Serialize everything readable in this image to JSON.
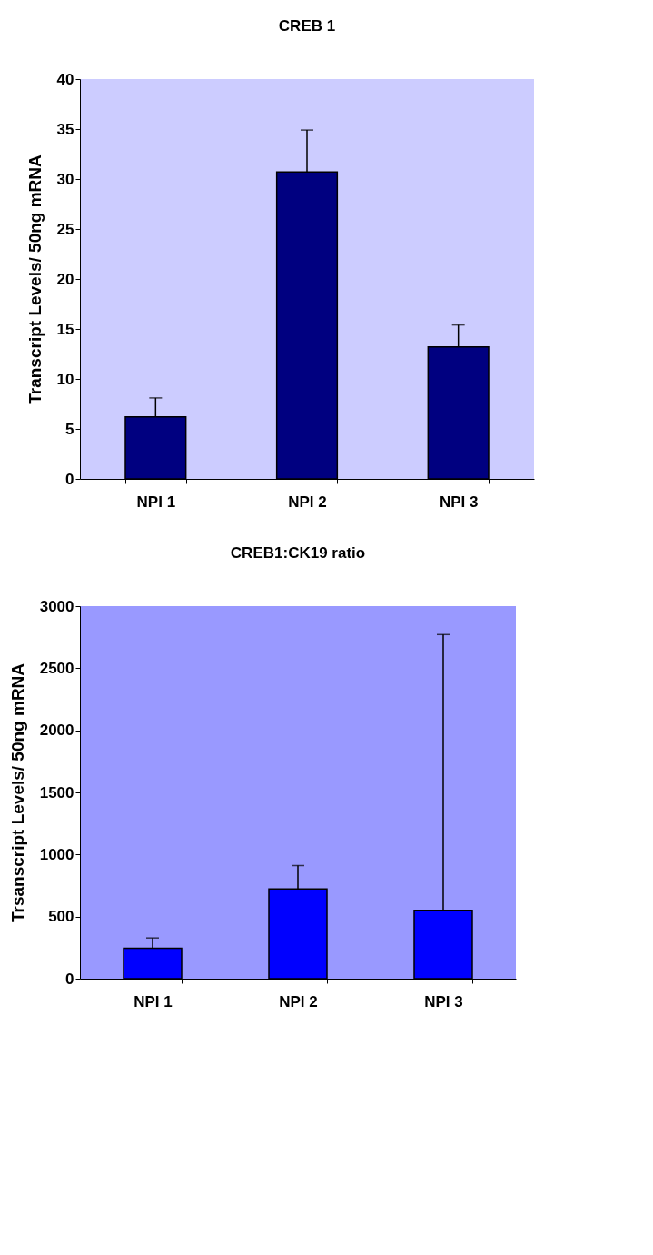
{
  "chart_data": [
    {
      "type": "bar",
      "title": "CREB 1",
      "ylabel": "Transcript Levels/ 50ng mRNA",
      "categories": [
        "NPI 1",
        "NPI 2",
        "NPI 3"
      ],
      "values": [
        6.2,
        30.7,
        13.2
      ],
      "errors": [
        [
          6.2,
          8.1
        ],
        [
          30.7,
          34.9
        ],
        [
          13.2,
          15.4
        ]
      ],
      "color": "#000080",
      "ylim": [
        0,
        40
      ],
      "yticks": [
        0,
        5,
        10,
        15,
        20,
        25,
        30,
        35,
        40
      ],
      "grid": false
    },
    {
      "type": "bar",
      "title": "CREB1:CK19 ratio",
      "ylabel": "Trsanscript Levels/ 50ng mRNA",
      "categories": [
        "NPI 1",
        "NPI 2",
        "NPI 3"
      ],
      "values": [
        245,
        723,
        551
      ],
      "errors": [
        [
          245,
          328
        ],
        [
          723,
          911
        ],
        [
          551,
          2771
        ]
      ],
      "color": "#0000ff",
      "ylim": [
        0,
        3000
      ],
      "yticks": [
        0,
        500,
        1000,
        1500,
        2000,
        2500,
        3000
      ],
      "grid": false
    }
  ]
}
